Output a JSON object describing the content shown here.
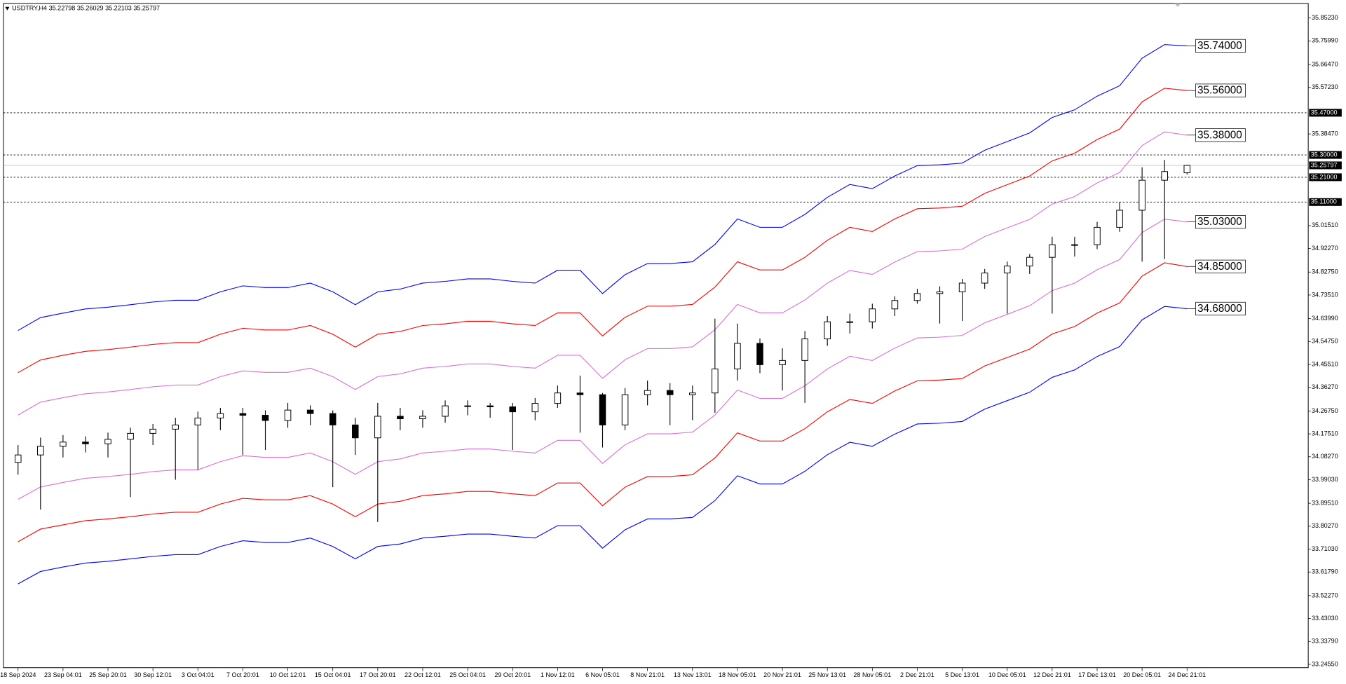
{
  "chart_data": {
    "type": "candlestick",
    "title": "USDTRY,H4  35.22798 35.26029 35.22103 35.25797",
    "categories": [
      "18 Sep 2024",
      null,
      "23 Sep 04:01",
      null,
      "25 Sep 20:01",
      null,
      "30 Sep 12:01",
      null,
      "3 Oct 04:01",
      null,
      "7 Oct 20:01",
      null,
      "10 Oct 12:01",
      null,
      "15 Oct 04:01",
      null,
      "17 Oct 20:01",
      null,
      "22 Oct 12:01",
      null,
      "25 Oct 04:01",
      null,
      "29 Oct 20:01",
      null,
      "1 Nov 12:01",
      null,
      "6 Nov 05:01",
      null,
      "8 Nov 21:01",
      null,
      "13 Nov 13:01",
      null,
      "18 Nov 05:01",
      null,
      "20 Nov 21:01",
      null,
      "25 Nov 13:01",
      null,
      "28 Nov 05:01",
      null,
      "2 Dec 21:01",
      null,
      "5 Dec 13:01",
      null,
      "10 Dec 05:01",
      null,
      "12 Dec 21:01",
      null,
      "17 Dec 13:01",
      null,
      "20 Dec 05:01",
      null,
      "24 Dec 21:01"
    ],
    "open": [
      34.06,
      34.09,
      34.125,
      34.142,
      34.135,
      34.153,
      34.177,
      34.194,
      34.211,
      34.239,
      34.257,
      34.25,
      34.229,
      34.271,
      34.257,
      34.211,
      34.159,
      34.246,
      34.236,
      34.246,
      34.288,
      34.288,
      34.284,
      34.264,
      34.298,
      34.34,
      34.333,
      34.211,
      34.333,
      34.35,
      34.333,
      34.34,
      34.437,
      34.54,
      34.454,
      34.471,
      34.558,
      34.627,
      34.627,
      34.679,
      34.713,
      34.741,
      34.748,
      34.783,
      34.824,
      34.852,
      34.887,
      34.938,
      34.938,
      35.008,
      35.077,
      35.198,
      35.22798
    ],
    "high": [
      34.13,
      34.16,
      34.17,
      34.165,
      34.18,
      34.2,
      34.215,
      34.24,
      34.265,
      34.28,
      34.28,
      34.27,
      34.3,
      34.29,
      34.27,
      34.24,
      34.3,
      34.28,
      34.27,
      34.31,
      34.31,
      34.3,
      34.3,
      34.32,
      34.37,
      34.41,
      34.34,
      34.36,
      34.39,
      34.38,
      34.37,
      34.64,
      34.62,
      34.56,
      34.52,
      34.59,
      34.65,
      34.66,
      34.7,
      34.73,
      34.76,
      34.77,
      34.8,
      34.84,
      34.87,
      34.9,
      34.97,
      34.97,
      35.03,
      35.11,
      35.25,
      35.28,
      35.26029
    ],
    "low": [
      34.01,
      33.87,
      34.08,
      34.1,
      34.08,
      33.92,
      34.13,
      33.99,
      34.03,
      34.19,
      34.09,
      34.11,
      34.2,
      34.21,
      33.96,
      34.09,
      33.82,
      34.19,
      34.2,
      34.22,
      34.25,
      34.24,
      34.11,
      34.23,
      34.28,
      34.18,
      34.12,
      34.19,
      34.29,
      34.21,
      34.23,
      34.26,
      34.39,
      34.42,
      34.35,
      34.3,
      34.53,
      34.58,
      34.6,
      34.65,
      34.7,
      34.62,
      34.63,
      34.76,
      34.66,
      34.82,
      34.66,
      34.89,
      34.92,
      34.99,
      34.87,
      34.88,
      35.22103
    ],
    "close": [
      34.09,
      34.125,
      34.142,
      34.135,
      34.153,
      34.177,
      34.194,
      34.211,
      34.239,
      34.257,
      34.25,
      34.229,
      34.271,
      34.257,
      34.211,
      34.159,
      34.246,
      34.236,
      34.246,
      34.288,
      34.288,
      34.284,
      34.264,
      34.298,
      34.34,
      34.333,
      34.211,
      34.333,
      34.35,
      34.333,
      34.34,
      34.437,
      34.54,
      34.454,
      34.471,
      34.558,
      34.627,
      34.627,
      34.679,
      34.713,
      34.741,
      34.748,
      34.783,
      34.824,
      34.852,
      34.887,
      34.938,
      34.938,
      35.008,
      35.077,
      35.198,
      35.233,
      35.25797
    ],
    "color_up": "#ffffff",
    "color_down": "#000000",
    "bands": [
      {
        "color": "#0000ff",
        "end_label": "35.74000",
        "values": [
          34.592,
          34.644,
          34.662,
          34.679,
          34.686,
          34.696,
          34.707,
          34.714,
          34.714,
          34.748,
          34.772,
          34.765,
          34.765,
          34.783,
          34.748,
          34.696,
          34.748,
          34.759,
          34.783,
          34.79,
          34.8,
          34.8,
          34.79,
          34.783,
          34.835,
          34.835,
          34.741,
          34.817,
          34.862,
          34.862,
          34.869,
          34.939,
          35.042,
          35.008,
          35.008,
          35.06,
          35.129,
          35.181,
          35.164,
          35.215,
          35.257,
          35.26,
          35.267,
          35.319,
          35.354,
          35.389,
          35.451,
          35.482,
          35.537,
          35.579,
          35.69,
          35.745,
          35.74
        ]
      },
      {
        "color": "#ff0000",
        "end_label": "35.56000",
        "values": [
          34.422,
          34.473,
          34.492,
          34.508,
          34.515,
          34.525,
          34.536,
          34.543,
          34.543,
          34.577,
          34.601,
          34.594,
          34.594,
          34.612,
          34.577,
          34.525,
          34.577,
          34.588,
          34.612,
          34.619,
          34.629,
          34.629,
          34.619,
          34.612,
          34.663,
          34.663,
          34.57,
          34.645,
          34.69,
          34.69,
          34.697,
          34.767,
          34.869,
          34.836,
          34.836,
          34.887,
          34.956,
          35.008,
          34.991,
          35.042,
          35.083,
          35.086,
          35.093,
          35.145,
          35.18,
          35.215,
          35.276,
          35.307,
          35.362,
          35.404,
          35.514,
          35.569,
          35.56
        ]
      },
      {
        "color": "#da70d6",
        "end_label": "35.38000",
        "values": [
          34.251,
          34.303,
          34.321,
          34.337,
          34.344,
          34.354,
          34.365,
          34.372,
          34.372,
          34.406,
          34.429,
          34.423,
          34.423,
          34.44,
          34.406,
          34.354,
          34.406,
          34.417,
          34.44,
          34.447,
          34.457,
          34.457,
          34.447,
          34.44,
          34.492,
          34.492,
          34.399,
          34.474,
          34.519,
          34.519,
          34.526,
          34.595,
          34.697,
          34.663,
          34.663,
          34.715,
          34.783,
          34.834,
          34.818,
          34.868,
          34.91,
          34.913,
          34.92,
          34.971,
          35.006,
          35.04,
          35.102,
          35.132,
          35.187,
          35.229,
          35.338,
          35.393,
          35.38
        ]
      },
      {
        "color": "#da70d6",
        "end_label": "35.03000",
        "values": [
          33.911,
          33.961,
          33.979,
          33.996,
          34.003,
          34.012,
          34.023,
          34.03,
          34.03,
          34.063,
          34.087,
          34.08,
          34.08,
          34.098,
          34.063,
          34.012,
          34.063,
          34.074,
          34.098,
          34.105,
          34.114,
          34.114,
          34.105,
          34.098,
          34.149,
          34.149,
          34.056,
          34.131,
          34.175,
          34.175,
          34.182,
          34.251,
          34.352,
          34.318,
          34.318,
          34.369,
          34.437,
          34.488,
          34.471,
          34.521,
          34.562,
          34.565,
          34.572,
          34.623,
          34.657,
          34.692,
          34.753,
          34.783,
          34.837,
          34.878,
          34.987,
          35.041,
          35.03
        ]
      },
      {
        "color": "#ff0000",
        "end_label": "34.85000",
        "values": [
          33.74,
          33.791,
          33.808,
          33.825,
          33.832,
          33.841,
          33.852,
          33.859,
          33.859,
          33.892,
          33.915,
          33.909,
          33.909,
          33.926,
          33.892,
          33.841,
          33.892,
          33.903,
          33.926,
          33.933,
          33.943,
          33.943,
          33.933,
          33.926,
          33.977,
          33.977,
          33.885,
          33.96,
          34.003,
          34.003,
          34.01,
          34.078,
          34.179,
          34.146,
          34.146,
          34.196,
          34.264,
          34.314,
          34.298,
          34.348,
          34.389,
          34.392,
          34.398,
          34.449,
          34.483,
          34.517,
          34.578,
          34.608,
          34.662,
          34.703,
          34.811,
          34.865,
          34.85
        ]
      },
      {
        "color": "#0000ff",
        "end_label": "34.68000",
        "values": [
          33.57,
          33.62,
          33.638,
          33.654,
          33.661,
          33.671,
          33.681,
          33.688,
          33.688,
          33.721,
          33.744,
          33.737,
          33.737,
          33.755,
          33.721,
          33.671,
          33.721,
          33.731,
          33.755,
          33.762,
          33.771,
          33.771,
          33.762,
          33.755,
          33.805,
          33.805,
          33.714,
          33.788,
          33.832,
          33.832,
          33.838,
          33.906,
          34.006,
          33.973,
          33.973,
          34.024,
          34.091,
          34.141,
          34.125,
          34.174,
          34.215,
          34.218,
          34.225,
          34.275,
          34.309,
          34.343,
          34.403,
          34.433,
          34.487,
          34.527,
          34.635,
          34.689,
          34.68
        ]
      }
    ],
    "levels": [
      {
        "value": 35.47,
        "label": "35.47000"
      },
      {
        "value": 35.3,
        "label": "35.30000"
      },
      {
        "value": 35.21,
        "label": "35.21000"
      },
      {
        "value": 35.11,
        "label": "35.11000"
      }
    ],
    "price": 35.25797,
    "ylim": [
      33.232,
      35.911
    ],
    "yticks": [
      {
        "value": 35.8523,
        "label": "35.85230"
      },
      {
        "value": 35.7599,
        "label": "35.75990"
      },
      {
        "value": 35.6647,
        "label": "35.66470"
      },
      {
        "value": 35.5723,
        "label": "35.57230"
      },
      {
        "value": 35.3847,
        "label": "35.38470"
      },
      {
        "value": 35.0151,
        "label": "35.01510"
      },
      {
        "value": 34.9227,
        "label": "34.92270"
      },
      {
        "value": 34.8275,
        "label": "34.82750"
      },
      {
        "value": 34.7351,
        "label": "34.73510"
      },
      {
        "value": 34.6399,
        "label": "34.63990"
      },
      {
        "value": 34.5475,
        "label": "34.54750"
      },
      {
        "value": 34.4551,
        "label": "34.45510"
      },
      {
        "value": 34.3627,
        "label": "34.36270"
      },
      {
        "value": 34.2675,
        "label": "34.26750"
      },
      {
        "value": 34.1751,
        "label": "34.17510"
      },
      {
        "value": 34.0827,
        "label": "34.08270"
      },
      {
        "value": 33.9903,
        "label": "33.99030"
      },
      {
        "value": 33.8951,
        "label": "33.89510"
      },
      {
        "value": 33.8027,
        "label": "33.80270"
      },
      {
        "value": 33.7103,
        "label": "33.71030"
      },
      {
        "value": 33.6179,
        "label": "33.61790"
      },
      {
        "value": 33.5227,
        "label": "33.52270"
      },
      {
        "value": 33.4303,
        "label": "33.43030"
      },
      {
        "value": 33.3379,
        "label": "33.33790"
      },
      {
        "value": 33.2455,
        "label": "33.24550"
      }
    ]
  }
}
